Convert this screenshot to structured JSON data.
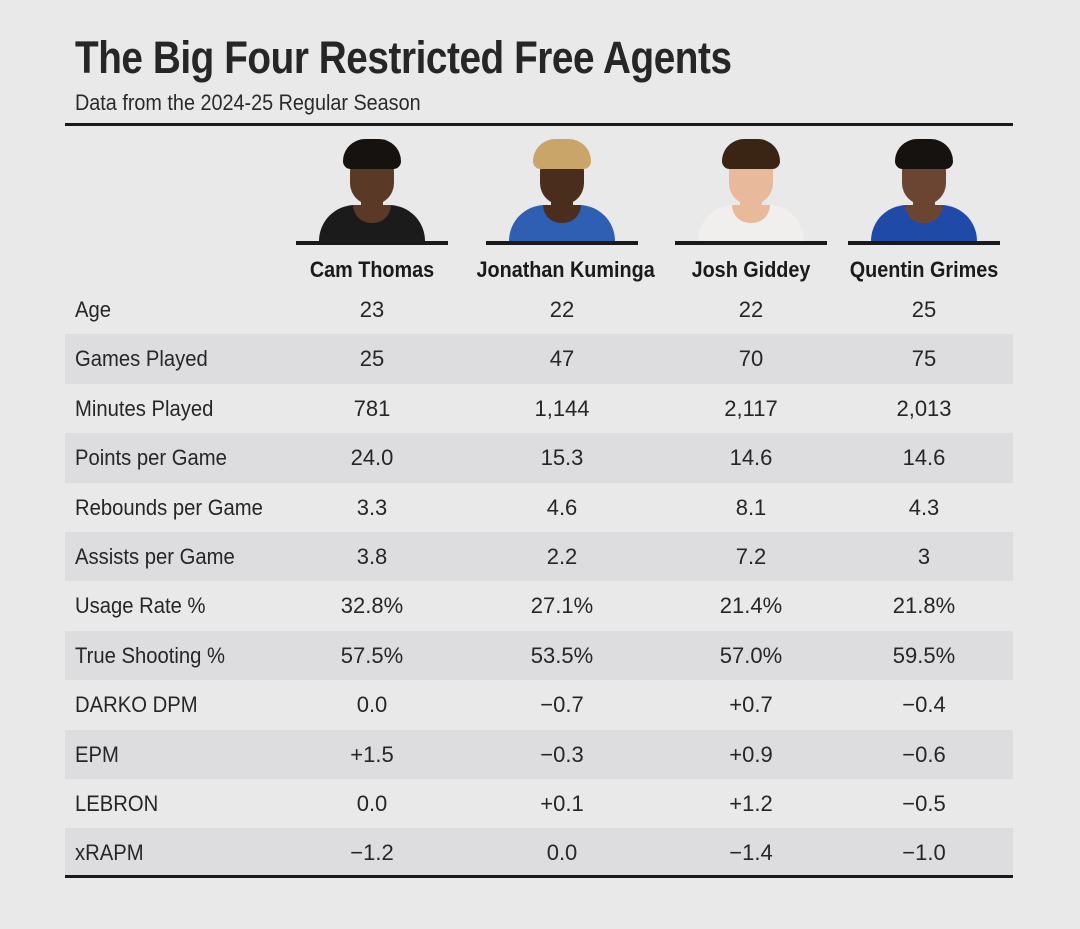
{
  "title": "The Big Four Restricted Free Agents",
  "subtitle": "Data from the 2024-25 Regular Season",
  "players": [
    {
      "name": "Cam Thomas",
      "headshot": "cam-thomas-headshot",
      "jersey_color": "#1b1b1b",
      "skin_color": "#5a3a26",
      "hair_color": "#161210"
    },
    {
      "name": "Jonathan Kuminga",
      "headshot": "jonathan-kuminga-headshot",
      "jersey_color": "#2f5fb3",
      "skin_color": "#4a2d1d",
      "hair_color": "#c9a56a"
    },
    {
      "name": "Josh Giddey",
      "headshot": "josh-giddey-headshot",
      "jersey_color": "#f1eeee",
      "skin_color": "#e8b99b",
      "hair_color": "#3a2414"
    },
    {
      "name": "Quentin Grimes",
      "headshot": "quentin-grimes-headshot",
      "jersey_color": "#1f4aa8",
      "skin_color": "#6b4531",
      "hair_color": "#151210"
    }
  ],
  "chart_data": {
    "type": "table",
    "title": "The Big Four Restricted Free Agents",
    "subtitle": "Data from the 2024-25 Regular Season",
    "columns": [
      "Cam Thomas",
      "Jonathan Kuminga",
      "Josh Giddey",
      "Quentin Grimes"
    ],
    "rows": [
      {
        "label": "Age",
        "values": [
          "23",
          "22",
          "22",
          "25"
        ]
      },
      {
        "label": "Games Played",
        "values": [
          "25",
          "47",
          "70",
          "75"
        ]
      },
      {
        "label": "Minutes Played",
        "values": [
          "781",
          "1,144",
          "2,117",
          "2,013"
        ]
      },
      {
        "label": "Points per Game",
        "values": [
          "24.0",
          "15.3",
          "14.6",
          "14.6"
        ]
      },
      {
        "label": "Rebounds per Game",
        "values": [
          "3.3",
          "4.6",
          "8.1",
          "4.3"
        ]
      },
      {
        "label": "Assists per Game",
        "values": [
          "3.8",
          "2.2",
          "7.2",
          "3"
        ]
      },
      {
        "label": "Usage Rate %",
        "values": [
          "32.8%",
          "27.1%",
          "21.4%",
          "21.8%"
        ]
      },
      {
        "label": "True Shooting %",
        "values": [
          "57.5%",
          "53.5%",
          "57.0%",
          "59.5%"
        ]
      },
      {
        "label": "DARKO DPM",
        "values": [
          "0.0",
          "−0.7",
          "+0.7",
          "−0.4"
        ]
      },
      {
        "label": "EPM",
        "values": [
          "+1.5",
          "−0.3",
          "+0.9",
          "−0.6"
        ]
      },
      {
        "label": "LEBRON",
        "values": [
          "0.0",
          "+0.1",
          "+1.2",
          "−0.5"
        ]
      },
      {
        "label": "xRAPM",
        "values": [
          "−1.2",
          "0.0",
          "−1.4",
          "−1.0"
        ]
      }
    ]
  },
  "colors": {
    "background": "#e9e9ea",
    "row_shade": "#dddddf",
    "rule": "#1a1a1a",
    "text": "#262626"
  }
}
